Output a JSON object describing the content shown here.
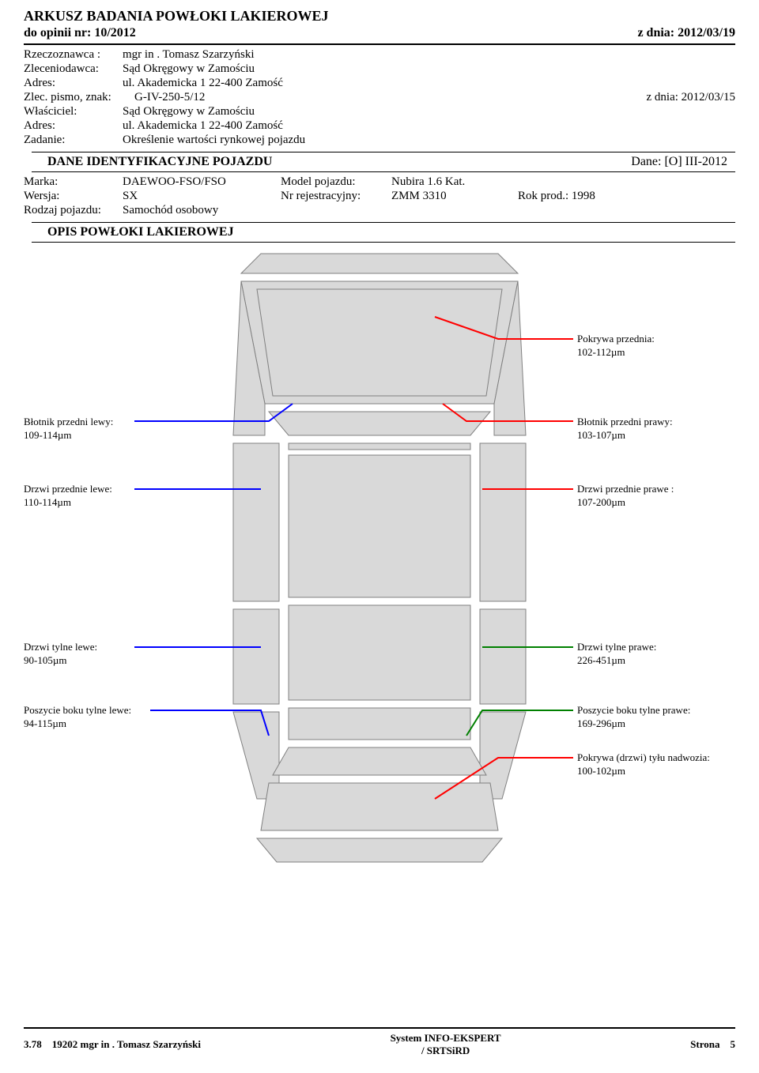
{
  "header": {
    "title": "ARKUSZ BADANIA POWŁOKI LAKIEROWEJ",
    "opinion_label": "do opinii nr:",
    "opinion_nr": "10/2012",
    "date_label": "z dnia:",
    "date": "2012/03/19"
  },
  "meta": {
    "expert_label": "Rzeczoznawca :",
    "expert": "mgr in . Tomasz Szarzyński",
    "client_label": "Zleceniodawca:",
    "client": "Sąd Okręgowy w Zamościu",
    "addr_label": "Adres:",
    "addr1": "ul. Akademicka 1 22-400 Zamość",
    "order_label": "Zlec. pismo, znak:",
    "order": "G-IV-250-5/12",
    "order_date_label": "z dnia:",
    "order_date": "2012/03/15",
    "owner_label": "Właściciel:",
    "owner": "Sąd Okręgowy w Zamościu",
    "addr2": "ul. Akademicka 1 22-400 Zamość",
    "task_label": "Zadanie:",
    "task": "Określenie wartości rynkowej pojazdu"
  },
  "id_section": {
    "title": "DANE IDENTYFIKACYJNE POJAZDU",
    "dane": "Dane: [O] III-2012"
  },
  "vehicle": {
    "make_label": "Marka:",
    "make": "DAEWOO-FSO/FSO",
    "model_label": "Model pojazdu:",
    "model": "Nubira 1.6 Kat.",
    "version_label": "Wersja:",
    "version": "SX",
    "reg_label": "Nr rejestracyjny:",
    "reg": "ZMM 3310",
    "year_label": "Rok prod.:",
    "year": "1998",
    "type_label": "Rodzaj pojazdu:",
    "type": "Samochód osobowy"
  },
  "coating_section": "OPIS POWŁOKI LAKIEROWEJ",
  "callouts": {
    "hood": {
      "label": "Pokrywa przednia:",
      "value": "102-112µm"
    },
    "fender_fl": {
      "label": "Błotnik przedni lewy:",
      "value": "109-114µm"
    },
    "fender_fr": {
      "label": "Błotnik przedni prawy:",
      "value": "103-107µm"
    },
    "door_fl": {
      "label": "Drzwi przednie lewe:",
      "value": "110-114µm"
    },
    "door_fr": {
      "label": "Drzwi przednie prawe :",
      "value": "107-200µm"
    },
    "door_rl": {
      "label": "Drzwi tylne lewe:",
      "value": "90-105µm"
    },
    "door_rr": {
      "label": "Drzwi tylne prawe:",
      "value": "226-451µm"
    },
    "panel_rl": {
      "label": "Poszycie boku tylne lewe:",
      "value": "94-115µm"
    },
    "panel_rr": {
      "label": "Poszycie boku tylne prawe:",
      "value": "169-296µm"
    },
    "trunk": {
      "label": "Pokrywa (drzwi) tyłu nadwozia:",
      "value": "100-102µm"
    }
  },
  "diagram": {
    "fill": "#d9d9d9",
    "stroke": "#808080",
    "line_colors": {
      "hood": "#ff0000",
      "fender_fl": "#0000ff",
      "fender_fr": "#ff0000",
      "door_fl": "#0000ff",
      "door_fr": "#ff0000",
      "door_rl": "#0000ff",
      "door_rr": "#008000",
      "panel_rl": "#0000ff",
      "panel_rr": "#008000",
      "trunk": "#ff0000"
    }
  },
  "footer": {
    "left_code": "3.78",
    "left_text": "19202 mgr in . Tomasz Szarzyński",
    "mid1": "System INFO-EKSPERT",
    "mid2": "/ SRTSiRD",
    "page_label": "Strona",
    "page": "5"
  }
}
